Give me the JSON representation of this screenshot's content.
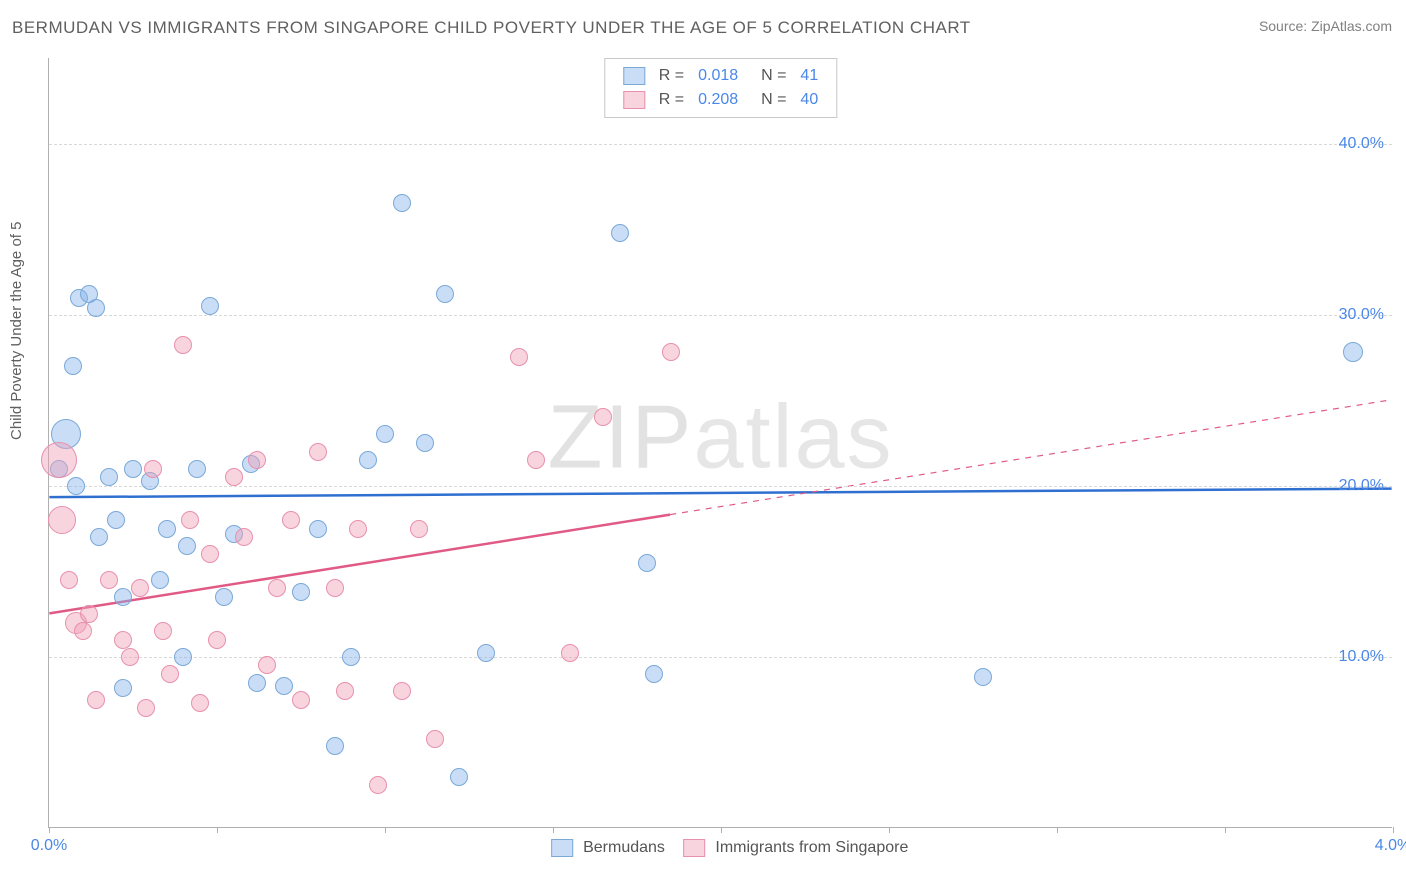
{
  "title": "BERMUDAN VS IMMIGRANTS FROM SINGAPORE CHILD POVERTY UNDER THE AGE OF 5 CORRELATION CHART",
  "source_label": "Source: ZipAtlas.com",
  "watermark": {
    "left": "ZIP",
    "right": "atlas"
  },
  "chart": {
    "type": "scatter-correlation",
    "ylabel": "Child Poverty Under the Age of 5",
    "xlim": [
      0.0,
      4.0
    ],
    "ylim": [
      0.0,
      45.0
    ],
    "xticks": [
      0.0,
      0.5,
      1.0,
      1.5,
      2.0,
      2.5,
      3.0,
      3.5,
      4.0
    ],
    "xticks_labeled": {
      "0.0": "0.0%",
      "4.0": "4.0%"
    },
    "yticks": [
      10.0,
      20.0,
      30.0,
      40.0
    ],
    "yticks_labeled": {
      "10": "10.0%",
      "20": "20.0%",
      "30": "30.0%",
      "40": "40.0%"
    },
    "background_color": "#ffffff",
    "grid_color": "#d8d8d8",
    "axis_color": "#b0b0b0",
    "label_color": "#4a87e8",
    "series": [
      {
        "key": "bermudans",
        "label": "Bermudans",
        "R": "0.018",
        "N": "41",
        "fill": "rgba(135,180,235,0.45)",
        "stroke": "#7aa9d8",
        "trend_color": "#2f6fd0",
        "trend_width": 2.5,
        "trend": {
          "x1": 0.0,
          "y1": 19.3,
          "x2": 4.0,
          "y2": 19.8,
          "x_solid_end": 4.0
        },
        "default_r": 9,
        "points": [
          {
            "x": 0.05,
            "y": 23.0,
            "r": 15
          },
          {
            "x": 0.03,
            "y": 21.0,
            "r": 9
          },
          {
            "x": 0.07,
            "y": 27.0,
            "r": 9
          },
          {
            "x": 0.09,
            "y": 31.0,
            "r": 9
          },
          {
            "x": 0.14,
            "y": 30.4,
            "r": 9
          },
          {
            "x": 0.18,
            "y": 20.5,
            "r": 9
          },
          {
            "x": 0.2,
            "y": 18.0,
            "r": 9
          },
          {
            "x": 0.22,
            "y": 13.5,
            "r": 9
          },
          {
            "x": 0.22,
            "y": 8.2,
            "r": 9
          },
          {
            "x": 0.25,
            "y": 21.0,
            "r": 9
          },
          {
            "x": 0.3,
            "y": 20.3,
            "r": 9
          },
          {
            "x": 0.35,
            "y": 17.5,
            "r": 9
          },
          {
            "x": 0.4,
            "y": 10.0,
            "r": 9
          },
          {
            "x": 0.41,
            "y": 16.5,
            "r": 9
          },
          {
            "x": 0.44,
            "y": 21.0,
            "r": 9
          },
          {
            "x": 0.48,
            "y": 30.5,
            "r": 9
          },
          {
            "x": 0.52,
            "y": 13.5,
            "r": 9
          },
          {
            "x": 0.55,
            "y": 17.2,
            "r": 9
          },
          {
            "x": 0.6,
            "y": 21.3,
            "r": 9
          },
          {
            "x": 0.62,
            "y": 8.5,
            "r": 9
          },
          {
            "x": 0.75,
            "y": 13.8,
            "r": 9
          },
          {
            "x": 0.8,
            "y": 17.5,
            "r": 9
          },
          {
            "x": 0.85,
            "y": 4.8,
            "r": 9
          },
          {
            "x": 0.9,
            "y": 10.0,
            "r": 9
          },
          {
            "x": 0.95,
            "y": 21.5,
            "r": 9
          },
          {
            "x": 1.0,
            "y": 23.0,
            "r": 9
          },
          {
            "x": 1.05,
            "y": 36.5,
            "r": 9
          },
          {
            "x": 1.12,
            "y": 22.5,
            "r": 9
          },
          {
            "x": 1.18,
            "y": 31.2,
            "r": 9
          },
          {
            "x": 1.22,
            "y": 3.0,
            "r": 9
          },
          {
            "x": 1.3,
            "y": 10.2,
            "r": 9
          },
          {
            "x": 1.7,
            "y": 34.8,
            "r": 9
          },
          {
            "x": 1.78,
            "y": 15.5,
            "r": 9
          },
          {
            "x": 1.8,
            "y": 9.0,
            "r": 9
          },
          {
            "x": 2.78,
            "y": 8.8,
            "r": 9
          },
          {
            "x": 3.88,
            "y": 27.8,
            "r": 10
          },
          {
            "x": 0.12,
            "y": 31.2,
            "r": 9
          },
          {
            "x": 0.08,
            "y": 20.0,
            "r": 9
          },
          {
            "x": 0.33,
            "y": 14.5,
            "r": 9
          },
          {
            "x": 0.7,
            "y": 8.3,
            "r": 9
          },
          {
            "x": 0.15,
            "y": 17.0,
            "r": 9
          }
        ]
      },
      {
        "key": "singapore",
        "label": "Immigrants from Singapore",
        "R": "0.208",
        "N": "40",
        "fill": "rgba(240,160,185,0.45)",
        "stroke": "#e890ad",
        "trend_color": "#e05a85",
        "trend_width": 2.5,
        "trend": {
          "x1": 0.0,
          "y1": 12.5,
          "x2": 4.0,
          "y2": 25.0,
          "x_solid_end": 1.85
        },
        "default_r": 9,
        "points": [
          {
            "x": 0.03,
            "y": 21.5,
            "r": 18
          },
          {
            "x": 0.04,
            "y": 18.0,
            "r": 14
          },
          {
            "x": 0.08,
            "y": 12.0,
            "r": 11
          },
          {
            "x": 0.1,
            "y": 11.5,
            "r": 9
          },
          {
            "x": 0.12,
            "y": 12.5,
            "r": 9
          },
          {
            "x": 0.14,
            "y": 7.5,
            "r": 9
          },
          {
            "x": 0.18,
            "y": 14.5,
            "r": 9
          },
          {
            "x": 0.22,
            "y": 11.0,
            "r": 9
          },
          {
            "x": 0.24,
            "y": 10.0,
            "r": 9
          },
          {
            "x": 0.27,
            "y": 14.0,
            "r": 9
          },
          {
            "x": 0.29,
            "y": 7.0,
            "r": 9
          },
          {
            "x": 0.31,
            "y": 21.0,
            "r": 9
          },
          {
            "x": 0.34,
            "y": 11.5,
            "r": 9
          },
          {
            "x": 0.36,
            "y": 9.0,
            "r": 9
          },
          {
            "x": 0.4,
            "y": 28.2,
            "r": 9
          },
          {
            "x": 0.42,
            "y": 18.0,
            "r": 9
          },
          {
            "x": 0.45,
            "y": 7.3,
            "r": 9
          },
          {
            "x": 0.48,
            "y": 16.0,
            "r": 9
          },
          {
            "x": 0.5,
            "y": 11.0,
            "r": 9
          },
          {
            "x": 0.55,
            "y": 20.5,
            "r": 9
          },
          {
            "x": 0.58,
            "y": 17.0,
            "r": 9
          },
          {
            "x": 0.62,
            "y": 21.5,
            "r": 9
          },
          {
            "x": 0.65,
            "y": 9.5,
            "r": 9
          },
          {
            "x": 0.68,
            "y": 14.0,
            "r": 9
          },
          {
            "x": 0.72,
            "y": 18.0,
            "r": 9
          },
          {
            "x": 0.75,
            "y": 7.5,
            "r": 9
          },
          {
            "x": 0.8,
            "y": 22.0,
            "r": 9
          },
          {
            "x": 0.85,
            "y": 14.0,
            "r": 9
          },
          {
            "x": 0.88,
            "y": 8.0,
            "r": 9
          },
          {
            "x": 0.92,
            "y": 17.5,
            "r": 9
          },
          {
            "x": 0.98,
            "y": 2.5,
            "r": 9
          },
          {
            "x": 1.05,
            "y": 8.0,
            "r": 9
          },
          {
            "x": 1.1,
            "y": 17.5,
            "r": 9
          },
          {
            "x": 1.15,
            "y": 5.2,
            "r": 9
          },
          {
            "x": 1.4,
            "y": 27.5,
            "r": 9
          },
          {
            "x": 1.45,
            "y": 21.5,
            "r": 9
          },
          {
            "x": 1.55,
            "y": 10.2,
            "r": 9
          },
          {
            "x": 1.65,
            "y": 24.0,
            "r": 9
          },
          {
            "x": 1.85,
            "y": 27.8,
            "r": 9
          },
          {
            "x": 0.06,
            "y": 14.5,
            "r": 9
          }
        ]
      }
    ]
  }
}
